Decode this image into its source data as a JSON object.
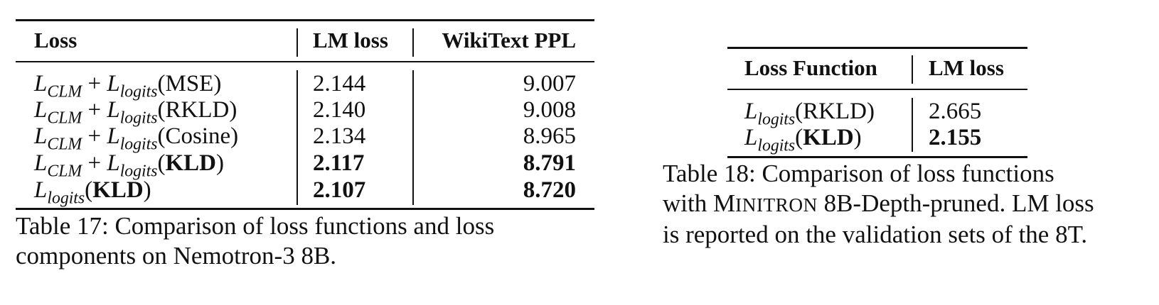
{
  "table17": {
    "headers": [
      "Loss",
      "LM loss",
      "WikiText PPL"
    ],
    "rows": [
      {
        "clm": "CLM",
        "logits": "logits",
        "loss_type": "MSE",
        "lm_loss": "2.144",
        "ppl": "9.007",
        "bold": false
      },
      {
        "clm": "CLM",
        "logits": "logits",
        "loss_type": "RKLD",
        "lm_loss": "2.140",
        "ppl": "9.008",
        "bold": false
      },
      {
        "clm": "CLM",
        "logits": "logits",
        "loss_type": "Cosine",
        "lm_loss": "2.134",
        "ppl": "8.965",
        "bold": false
      },
      {
        "clm": "CLM",
        "logits": "logits",
        "loss_type": "KLD",
        "lm_loss": "2.117",
        "ppl": "8.791",
        "bold": true
      },
      {
        "clm": "",
        "logits": "logits",
        "loss_type": "KLD",
        "lm_loss": "2.107",
        "ppl": "8.720",
        "bold": true
      }
    ],
    "caption": "Table 17: Comparison of loss functions and loss components on Nemotron-3 8B."
  },
  "table18": {
    "headers": [
      "Loss Function",
      "LM loss"
    ],
    "rows": [
      {
        "logits": "logits",
        "loss_type": "RKLD",
        "lm_loss": "2.665",
        "bold": false
      },
      {
        "logits": "logits",
        "loss_type": "KLD",
        "lm_loss": "2.155",
        "bold": true
      }
    ],
    "caption_prefix": "Table 18: Comparison of loss functions with ",
    "caption_model_first": "M",
    "caption_model_rest": "INITRON",
    "caption_suffix": " 8B-Depth-pruned. LM loss is reported on the validation sets of the 8T."
  }
}
